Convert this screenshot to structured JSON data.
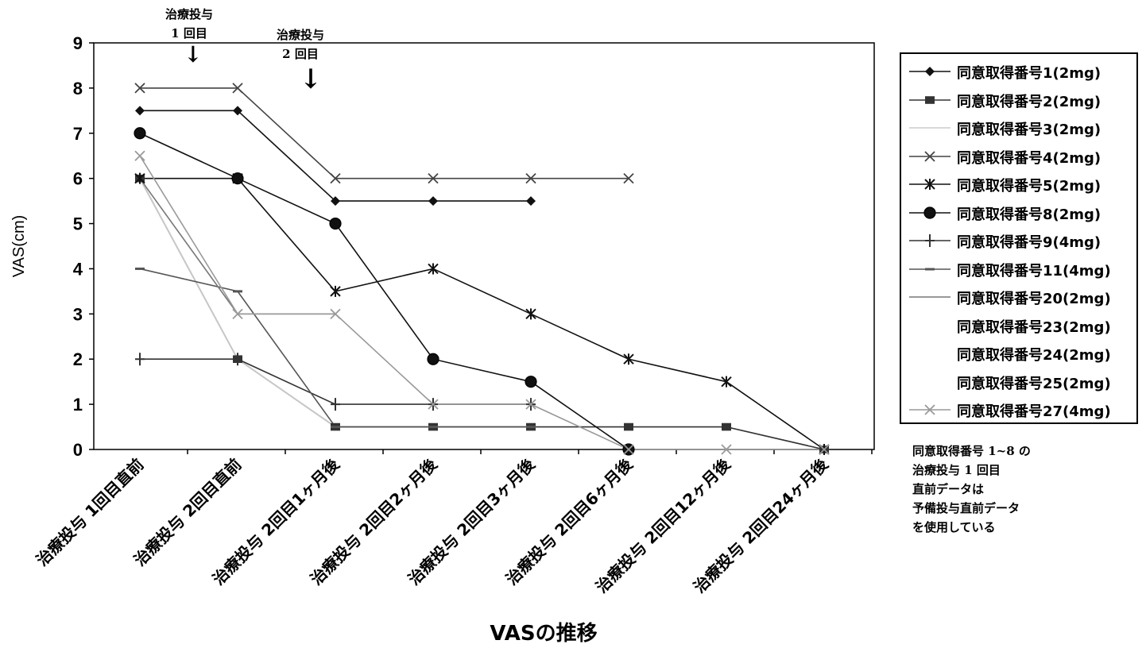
{
  "chart_data": {
    "type": "line",
    "title": "",
    "xlabel": "VASの推移",
    "ylabel": "VAS(cm)",
    "ylim": [
      0,
      9
    ],
    "yticks": [
      "0",
      "1",
      "2",
      "3",
      "4",
      "5",
      "6",
      "7",
      "8",
      "9"
    ],
    "grid": false,
    "legend_position": "right",
    "categories": [
      "治療投与 1回目直前",
      "治療投与 2回目直前",
      "治療投与 2回目1ヶ月後",
      "治療投与 2回目2ヶ月後",
      "治療投与 2回目3ヶ月後",
      "治療投与 2回目6ヶ月後",
      "治療投与 2回目12ヶ月後",
      "治療投与 2回目24ヶ月後"
    ],
    "series": [
      {
        "name": "同意取得番号1(2mg)",
        "marker": "diamond",
        "color": "#111111",
        "values": [
          7.5,
          7.5,
          5.5,
          5.5,
          5.5,
          null,
          null,
          null
        ]
      },
      {
        "name": "同意取得番号2(2mg)",
        "marker": "square",
        "color": "#333333",
        "values": [
          6,
          2,
          0.5,
          0.5,
          0.5,
          0.5,
          0.5,
          0
        ]
      },
      {
        "name": "同意取得番号3(2mg)",
        "marker": "none",
        "color": "#cccccc",
        "values": [
          6,
          2,
          0.5,
          null,
          null,
          null,
          null,
          null
        ]
      },
      {
        "name": "同意取得番号4(2mg)",
        "marker": "x",
        "color": "#444444",
        "values": [
          8,
          8,
          6,
          6,
          6,
          6,
          null,
          null
        ]
      },
      {
        "name": "同意取得番号5(2mg)",
        "marker": "star",
        "color": "#111111",
        "values": [
          6,
          6,
          3.5,
          4,
          3,
          2,
          1.5,
          0
        ]
      },
      {
        "name": "同意取得番号8(2mg)",
        "marker": "circle",
        "color": "#111111",
        "values": [
          7,
          6,
          5,
          2,
          1.5,
          0,
          null,
          null
        ]
      },
      {
        "name": "同意取得番号9(4mg)",
        "marker": "plus",
        "color": "#333333",
        "values": [
          2,
          2,
          1,
          1,
          1,
          null,
          null,
          null
        ]
      },
      {
        "name": "同意取得番号11(4mg)",
        "marker": "dash",
        "color": "#555555",
        "values": [
          4,
          3.5,
          0.5,
          0.5,
          0.5,
          null,
          null,
          null
        ]
      },
      {
        "name": "同意取得番号20(2mg)",
        "marker": "none",
        "color": "#777777",
        "values": [
          6,
          3,
          3,
          null,
          null,
          null,
          null,
          null
        ]
      },
      {
        "name": "同意取得番号23(2mg)",
        "marker": "none",
        "color": "#dddddd",
        "values": [
          null,
          null,
          null,
          null,
          null,
          null,
          null,
          null
        ]
      },
      {
        "name": "同意取得番号24(2mg)",
        "marker": "none",
        "color": "#dddddd",
        "values": [
          null,
          null,
          null,
          null,
          null,
          null,
          null,
          null
        ]
      },
      {
        "name": "同意取得番号25(2mg)",
        "marker": "none",
        "color": "#dddddd",
        "values": [
          null,
          null,
          null,
          null,
          null,
          null,
          null,
          null
        ]
      },
      {
        "name": "同意取得番号27(4mg)",
        "marker": "x",
        "color": "#999999",
        "values": [
          6.5,
          3,
          3,
          1,
          1,
          0,
          0,
          0
        ]
      }
    ]
  },
  "annotations": {
    "first_dose": [
      "治療投与",
      "1 回目"
    ],
    "second_dose": [
      "治療投与",
      "2 回目"
    ],
    "first_arrow": "↓",
    "second_arrow": "↓"
  },
  "note": {
    "lines": [
      "同意取得番号 1~8 の",
      "治療投与 1 回目",
      "直前データは",
      "予備投与直前データ",
      "を使用している"
    ]
  }
}
